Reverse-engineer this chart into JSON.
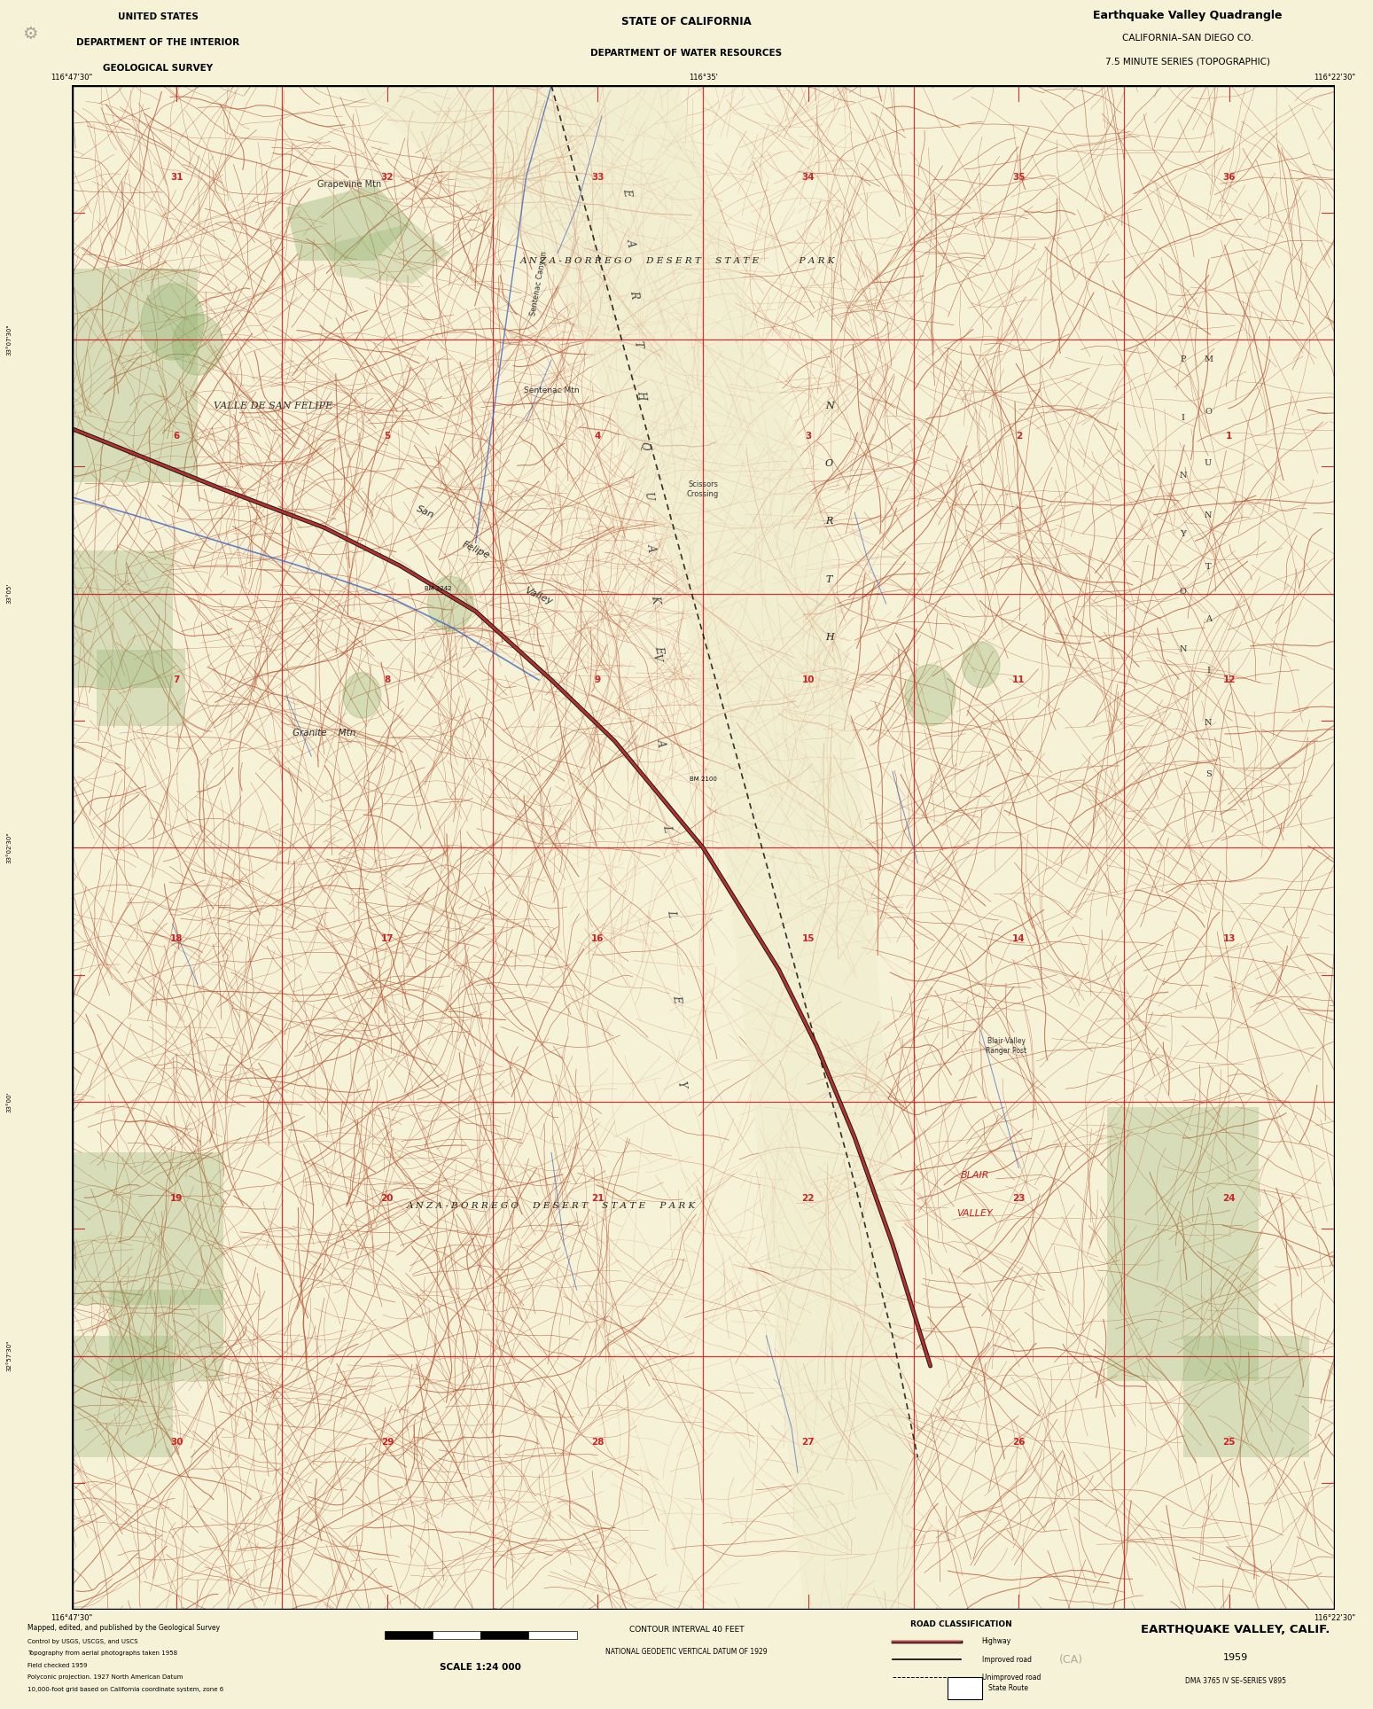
{
  "bg_color": "#f5f2d8",
  "map_bg": "#f5f2d8",
  "topo_color": "#b85c3a",
  "topo_color_light": "#cc7755",
  "red_grid": "#cc2222",
  "blue_water": "#4466bb",
  "green_veg": "#88aa66",
  "black": "#111111",
  "figsize": [
    15.49,
    19.28
  ],
  "dpi": 100,
  "title_left": [
    "UNITED STATES",
    "DEPARTMENT OF THE INTERIOR",
    "GEOLOGICAL SURVEY"
  ],
  "title_center": [
    "STATE OF CALIFORNIA",
    "DEPARTMENT OF WATER RESOURCES"
  ],
  "title_right_line1": "Earthquake Valley Quadrangle",
  "title_right_line2": "CALIFORNIA–SAN DIEGO CO.",
  "title_right_line3": "7.5 MINUTE SERIES (TOPOGRAPHIC)",
  "map_name": "EARTHQUAKE VALLEY, CALIF.",
  "map_year": "1959",
  "scale_text": "SCALE 1:24 000",
  "contour_text": "CONTOUR INTERVAL 40 FEET",
  "datum_text": "NATIONAL GEODETIC VERTICAL DATUM OF 1929",
  "dma_text": "DMA 3765 IV SE–SERIES V895"
}
